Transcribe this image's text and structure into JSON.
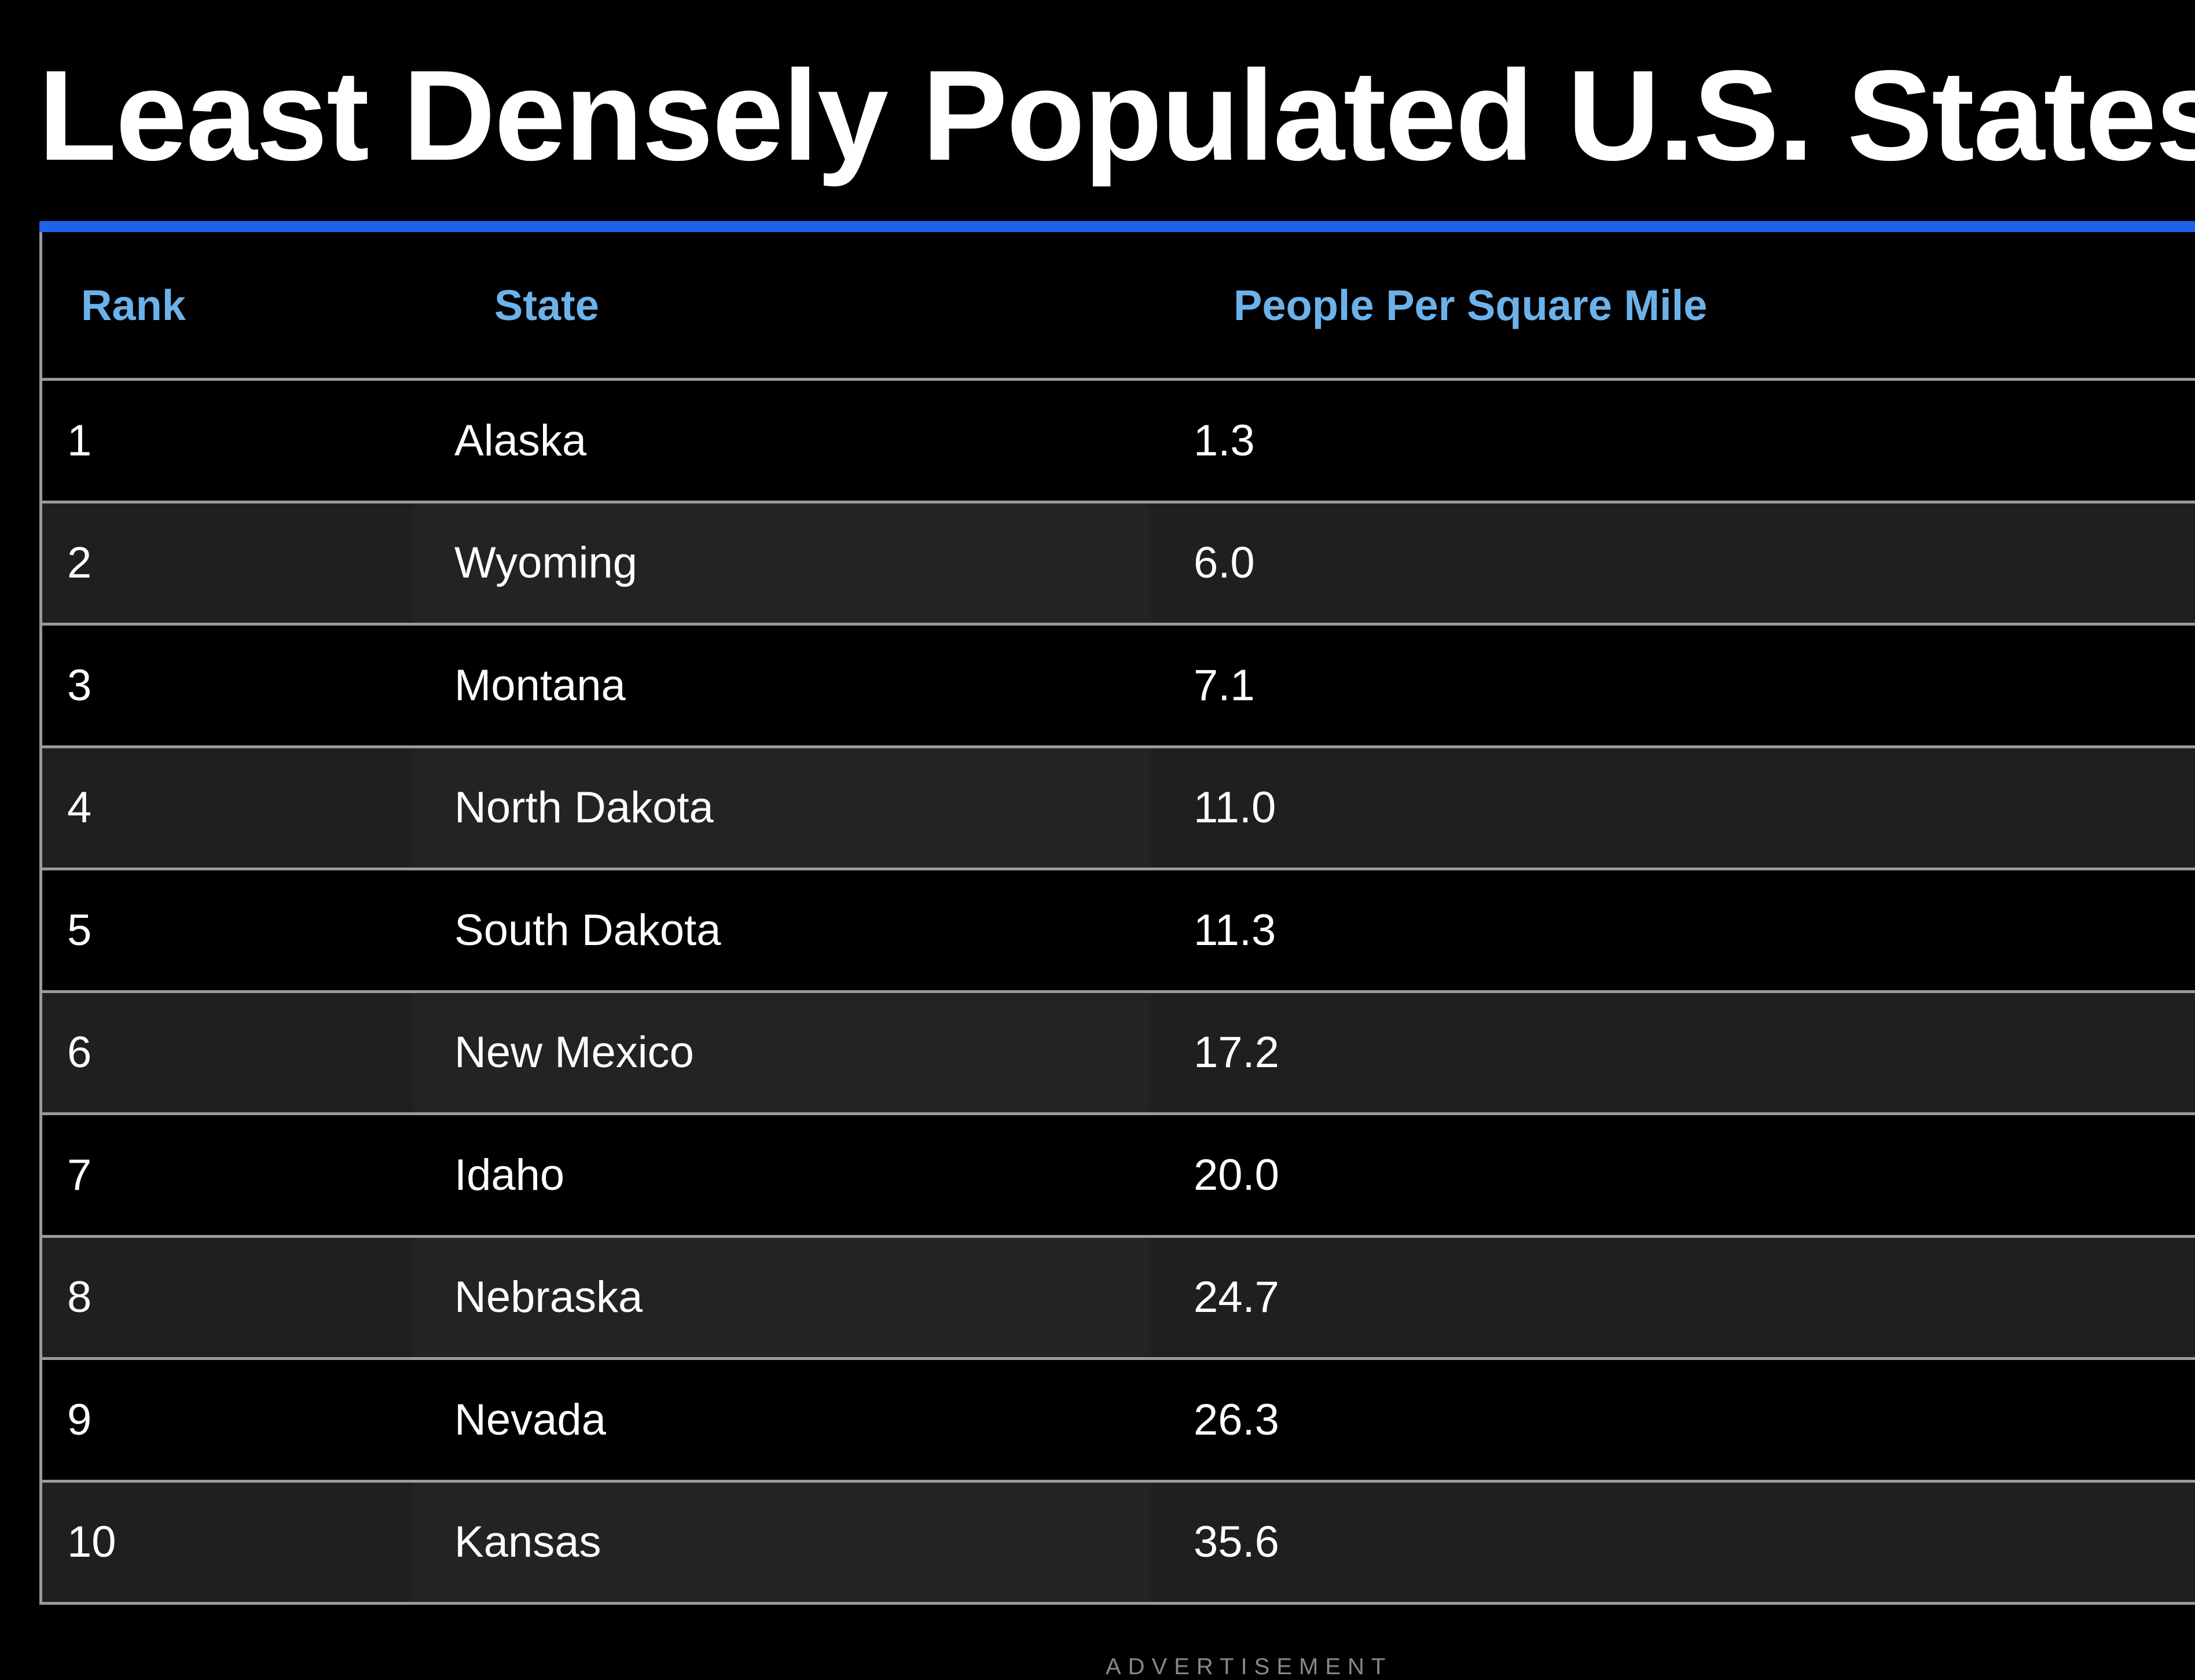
{
  "header": {
    "title": "Least Densely Populated U.S. States"
  },
  "table": {
    "columns": [
      "Rank",
      "State",
      "People Per Square Mile"
    ],
    "rows": [
      [
        "1",
        "Alaska",
        "1.3"
      ],
      [
        "2",
        "Wyoming",
        "6.0"
      ],
      [
        "3",
        "Montana",
        "7.1"
      ],
      [
        "4",
        "North Dakota",
        "11.0"
      ],
      [
        "5",
        "South Dakota",
        "11.3"
      ],
      [
        "6",
        "New Mexico",
        "17.2"
      ],
      [
        "7",
        "Idaho",
        "20.0"
      ],
      [
        "8",
        "Nebraska",
        "24.7"
      ],
      [
        "9",
        "Nevada",
        "26.3"
      ],
      [
        "10",
        "Kansas",
        "35.6"
      ]
    ]
  },
  "footer": {
    "ad_label": "ADVERTISEMENT"
  }
}
